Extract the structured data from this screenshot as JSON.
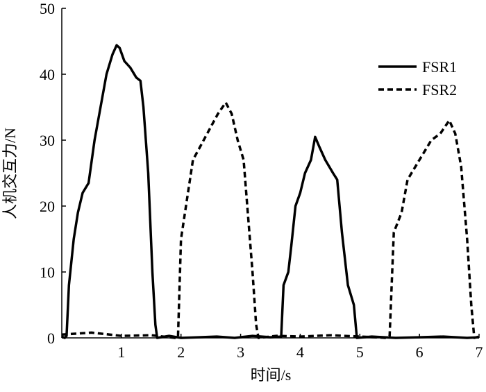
{
  "chart_data": {
    "type": "line",
    "xlabel": "时间/s",
    "ylabel": "人机交互力/N",
    "xlim": [
      0,
      7
    ],
    "xticks": [
      1,
      2,
      3,
      4,
      5,
      6,
      7
    ],
    "ylim": [
      0,
      50
    ],
    "yticks": [
      0,
      10,
      20,
      30,
      40,
      50
    ],
    "legend": "upper right",
    "series": [
      {
        "name": "FSR1",
        "color": "#000000",
        "dash": "solid",
        "x": [
          0,
          0.05,
          0.08,
          0.12,
          0.2,
          0.27,
          0.35,
          0.45,
          0.55,
          0.65,
          0.75,
          0.85,
          0.92,
          0.97,
          1.05,
          1.15,
          1.25,
          1.32,
          1.37,
          1.45,
          1.52,
          1.57,
          1.6,
          1.8,
          2.0,
          2.3,
          2.6,
          2.9,
          3.2,
          3.5,
          3.68,
          3.72,
          3.8,
          3.85,
          3.92,
          4.0,
          4.08,
          4.18,
          4.25,
          4.32,
          4.42,
          4.55,
          4.62,
          4.7,
          4.8,
          4.9,
          4.95,
          5.2,
          5.6,
          6.0,
          6.4,
          6.8,
          7.0
        ],
        "values": [
          0.2,
          0,
          0.3,
          8,
          15,
          19,
          22,
          23.5,
          30,
          35,
          40,
          43,
          44.4,
          44,
          42,
          41,
          39.5,
          39,
          35,
          25,
          10,
          2,
          0,
          0.3,
          0,
          0.1,
          0.2,
          0,
          0.3,
          0.1,
          0.2,
          8,
          10,
          14,
          20,
          22,
          25,
          27,
          30.5,
          29,
          27,
          25,
          24,
          16,
          8,
          5,
          0,
          0.2,
          0,
          0.1,
          0.2,
          0,
          0.1
        ]
      },
      {
        "name": "FSR2",
        "color": "#000000",
        "dash": "dashed",
        "x": [
          0,
          0.5,
          1.0,
          1.5,
          1.9,
          1.95,
          2.0,
          2.1,
          2.2,
          2.35,
          2.5,
          2.62,
          2.75,
          2.85,
          2.95,
          3.05,
          3.12,
          3.2,
          3.26,
          3.3,
          3.6,
          4.0,
          4.5,
          5.0,
          5.45,
          5.5,
          5.57,
          5.7,
          5.8,
          6.0,
          6.2,
          6.35,
          6.5,
          6.6,
          6.7,
          6.8,
          6.87,
          6.92,
          7.0
        ],
        "values": [
          0.5,
          0.8,
          0.3,
          0.4,
          0,
          0.2,
          15,
          21,
          27,
          29.5,
          32,
          34,
          35.7,
          34,
          30,
          27,
          19,
          10,
          2,
          0,
          0.3,
          0.2,
          0.4,
          0.2,
          0,
          0.3,
          16,
          19,
          24,
          27,
          30,
          31,
          33,
          31,
          26,
          15,
          5,
          0,
          0.2
        ]
      }
    ]
  }
}
